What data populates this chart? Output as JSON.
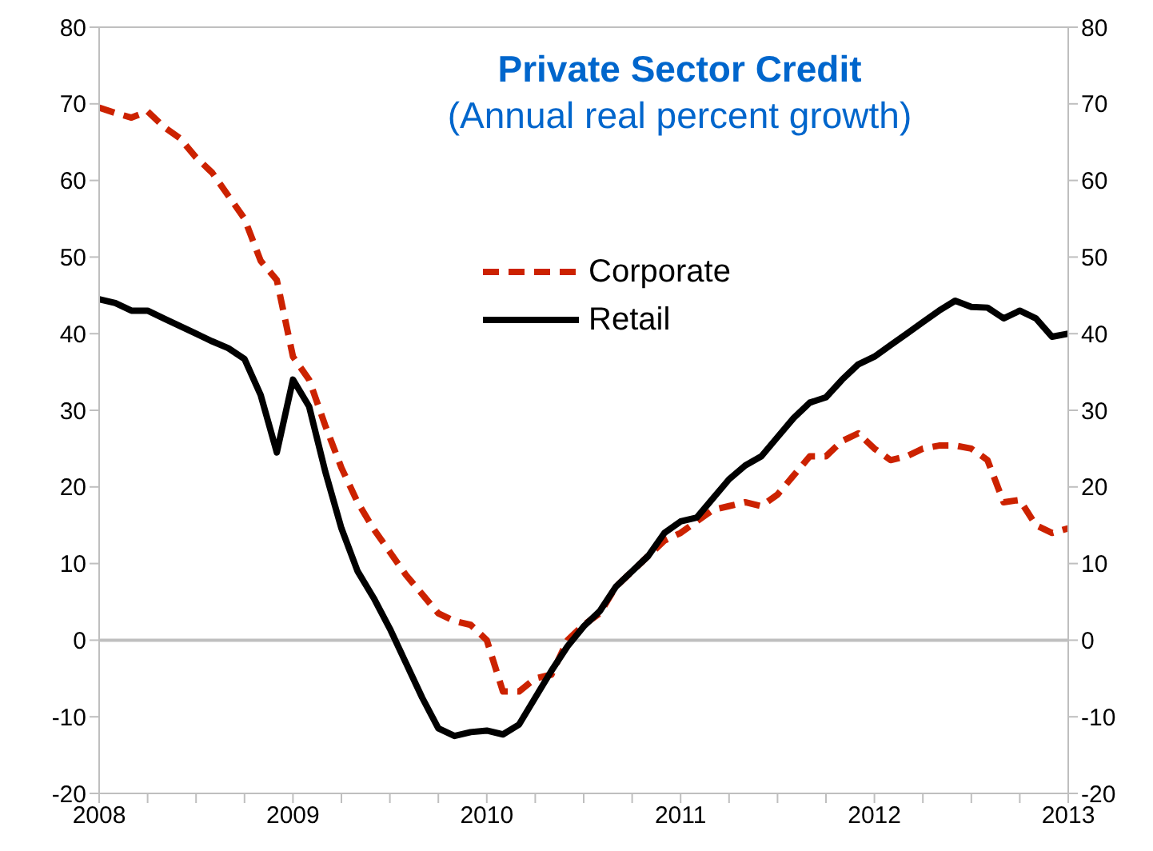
{
  "chart_data": {
    "type": "line",
    "title": "Private Sector Credit",
    "subtitle": "(Annual real percent growth)",
    "x": [
      "2008-01",
      "2008-02",
      "2008-03",
      "2008-04",
      "2008-05",
      "2008-06",
      "2008-07",
      "2008-08",
      "2008-09",
      "2008-10",
      "2008-11",
      "2008-12",
      "2009-01",
      "2009-02",
      "2009-03",
      "2009-04",
      "2009-05",
      "2009-06",
      "2009-07",
      "2009-08",
      "2009-09",
      "2009-10",
      "2009-11",
      "2009-12",
      "2010-01",
      "2010-02",
      "2010-03",
      "2010-04",
      "2010-05",
      "2010-06",
      "2010-07",
      "2010-08",
      "2010-09",
      "2010-10",
      "2010-11",
      "2010-12",
      "2011-01",
      "2011-02",
      "2011-03",
      "2011-04",
      "2011-05",
      "2011-06",
      "2011-07",
      "2011-08",
      "2011-09",
      "2011-10",
      "2011-11",
      "2011-12",
      "2012-01",
      "2012-02",
      "2012-03",
      "2012-04",
      "2012-05",
      "2012-06",
      "2012-07",
      "2012-08",
      "2012-09",
      "2012-10",
      "2012-11",
      "2012-12",
      "2013-01"
    ],
    "series": [
      {
        "name": "Corporate",
        "color": "#cc2200",
        "line_style": "dashed",
        "values": [
          69.5,
          68.8,
          68.2,
          69,
          67,
          65.5,
          63,
          61,
          58,
          55,
          49.5,
          47,
          37,
          34,
          28,
          22.5,
          18,
          14.5,
          11.5,
          8.5,
          6,
          3.5,
          2.5,
          2,
          0,
          -6.7,
          -6.7,
          -5,
          -4.5,
          0,
          2,
          3.5,
          7,
          9,
          11,
          13,
          14,
          15.5,
          17,
          17.5,
          18,
          17.5,
          19,
          21.5,
          24,
          24,
          26,
          27,
          25,
          23.5,
          24,
          25,
          25.4,
          25.4,
          25,
          23.5,
          18,
          18.3,
          15,
          14,
          14.6
        ]
      },
      {
        "name": "Retail",
        "color": "#000000",
        "line_style": "solid",
        "values": [
          44.5,
          44,
          43,
          43,
          42,
          41,
          40,
          39,
          38.1,
          36.7,
          32,
          24.5,
          34,
          30.5,
          22,
          14.6,
          9,
          5.5,
          1.5,
          -3,
          -7.5,
          -11.5,
          -12.5,
          -12,
          -11.8,
          -12.3,
          -11,
          -7.5,
          -4,
          -0.8,
          1.8,
          3.8,
          7,
          9,
          11,
          14,
          15.5,
          16,
          18.5,
          21,
          22.8,
          24,
          26.5,
          29,
          31,
          31.7,
          34,
          36,
          37,
          38.5,
          40,
          41.5,
          43,
          44.3,
          43.5,
          43.4,
          42,
          43,
          42,
          39.6,
          40
        ]
      }
    ],
    "xlim": [
      "2008-01",
      "2013-01"
    ],
    "xticks": [
      {
        "value": "2008-01",
        "label": "2008"
      },
      {
        "value": "2008-04",
        "label": null
      },
      {
        "value": "2008-07",
        "label": null
      },
      {
        "value": "2008-10",
        "label": null
      },
      {
        "value": "2009-01",
        "label": "2009"
      },
      {
        "value": "2009-04",
        "label": null
      },
      {
        "value": "2009-07",
        "label": null
      },
      {
        "value": "2009-10",
        "label": null
      },
      {
        "value": "2010-01",
        "label": "2010"
      },
      {
        "value": "2010-04",
        "label": null
      },
      {
        "value": "2010-07",
        "label": null
      },
      {
        "value": "2010-10",
        "label": null
      },
      {
        "value": "2011-01",
        "label": "2011"
      },
      {
        "value": "2011-04",
        "label": null
      },
      {
        "value": "2011-07",
        "label": null
      },
      {
        "value": "2011-10",
        "label": null
      },
      {
        "value": "2012-01",
        "label": "2012"
      },
      {
        "value": "2012-04",
        "label": null
      },
      {
        "value": "2012-07",
        "label": null
      },
      {
        "value": "2012-10",
        "label": null
      },
      {
        "value": "2013-01",
        "label": "2013"
      }
    ],
    "ylim": [
      -20,
      80
    ],
    "yticks": [
      -20,
      -10,
      0,
      10,
      20,
      30,
      40,
      50,
      60,
      70,
      80
    ],
    "y2lim": [
      -20,
      80
    ],
    "y2ticks": [
      -20,
      -10,
      0,
      10,
      20,
      30,
      40,
      50,
      60,
      70,
      80
    ],
    "ref_lines": [
      {
        "axis": "y",
        "value": 0,
        "color": "#bfbfbf"
      }
    ],
    "legend": "top",
    "marker": "none"
  }
}
